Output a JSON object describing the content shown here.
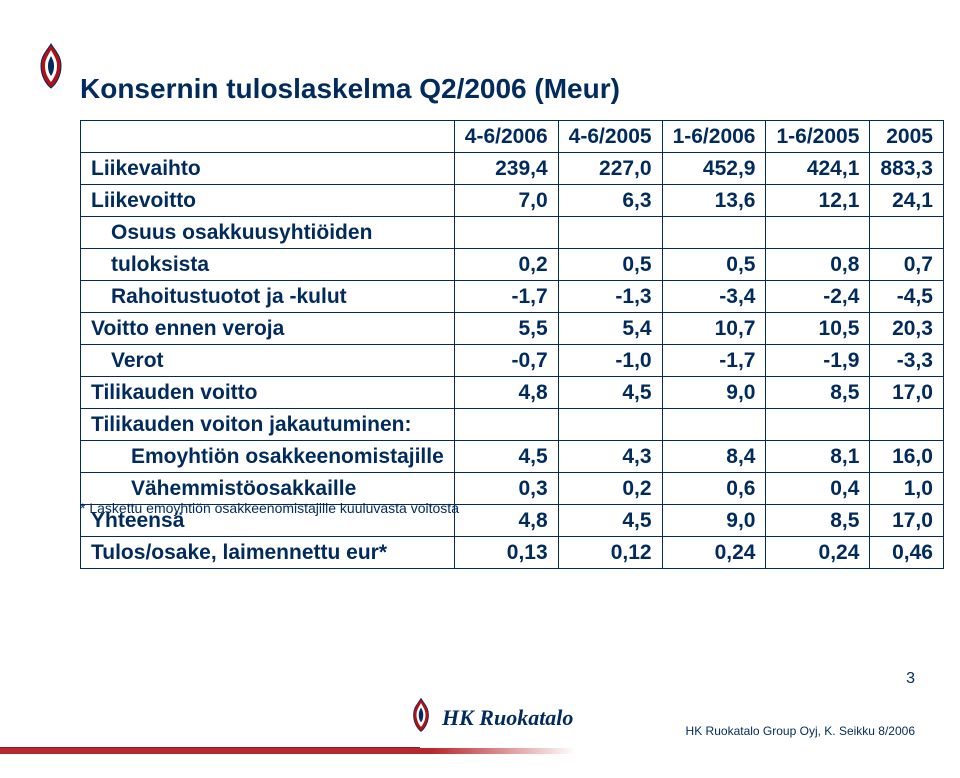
{
  "colors": {
    "brand_navy": "#002b5c",
    "brand_red": "#b11116",
    "border": "#002b5c",
    "background": "#ffffff"
  },
  "typography": {
    "title_fontsize": 28,
    "table_fontsize": 21,
    "footnote_fontsize": 14,
    "footer_fontsize": 12,
    "pagenum_fontsize": 16,
    "font_family": "Arial"
  },
  "title": "Konsernin tuloslaskelma Q2/2006 (Meur)",
  "table": {
    "type": "table",
    "columns": [
      "",
      "4-6/2006",
      "4-6/2005",
      "1-6/2006",
      "1-6/2005",
      "2005"
    ],
    "col_align": [
      "left",
      "right",
      "right",
      "right",
      "right",
      "right"
    ],
    "rows": [
      {
        "indent": 0,
        "label": "Liikevaihto",
        "cells": [
          "239,4",
          "227,0",
          "452,9",
          "424,1",
          "883,3"
        ]
      },
      {
        "indent": 0,
        "label": "Liikevoitto",
        "cells": [
          "7,0",
          "6,3",
          "13,6",
          "12,1",
          "24,1"
        ]
      },
      {
        "indent": 1,
        "label": "Osuus osakkuusyhtiöiden",
        "cells": [
          "",
          "",
          "",
          "",
          ""
        ]
      },
      {
        "indent": 1,
        "label": "tuloksista",
        "cells": [
          "0,2",
          "0,5",
          "0,5",
          "0,8",
          "0,7"
        ]
      },
      {
        "indent": 1,
        "label": "Rahoitustuotot ja -kulut",
        "cells": [
          "-1,7",
          "-1,3",
          "-3,4",
          "-2,4",
          "-4,5"
        ]
      },
      {
        "indent": 0,
        "label": "Voitto ennen veroja",
        "cells": [
          "5,5",
          "5,4",
          "10,7",
          "10,5",
          "20,3"
        ]
      },
      {
        "indent": 1,
        "label": "Verot",
        "cells": [
          "-0,7",
          "-1,0",
          "-1,7",
          "-1,9",
          "-3,3"
        ]
      },
      {
        "indent": 0,
        "label": "Tilikauden voitto",
        "cells": [
          "4,8",
          "4,5",
          "9,0",
          "8,5",
          "17,0"
        ]
      },
      {
        "indent": 0,
        "label": "Tilikauden voiton jakautuminen:",
        "cells": [
          "",
          "",
          "",
          "",
          ""
        ]
      },
      {
        "indent": 2,
        "label": "Emoyhtiön osakkeenomistajille",
        "cells": [
          "4,5",
          "4,3",
          "8,4",
          "8,1",
          "16,0"
        ]
      },
      {
        "indent": 2,
        "label": "Vähemmistöosakkaille",
        "cells": [
          "0,3",
          "0,2",
          "0,6",
          "0,4",
          "1,0"
        ]
      },
      {
        "indent": 0,
        "label": "Yhteensä",
        "cells": [
          "4,8",
          "4,5",
          "9,0",
          "8,5",
          "17,0"
        ]
      },
      {
        "indent": 0,
        "label": "Tulos/osake, laimennettu eur*",
        "cells": [
          "0,13",
          "0,12",
          "0,24",
          "0,24",
          "0,46"
        ]
      }
    ]
  },
  "footnote": "* Laskettu emoyhtiön osakkeenomistajille kuuluvasta voitosta",
  "page_number": "3",
  "footer": {
    "wordmark": "HK Ruokatalo",
    "right_text": "HK Ruokatalo Group Oyj, K. Seikku 8/2006"
  },
  "icons": {
    "flame": "flame-icon"
  }
}
